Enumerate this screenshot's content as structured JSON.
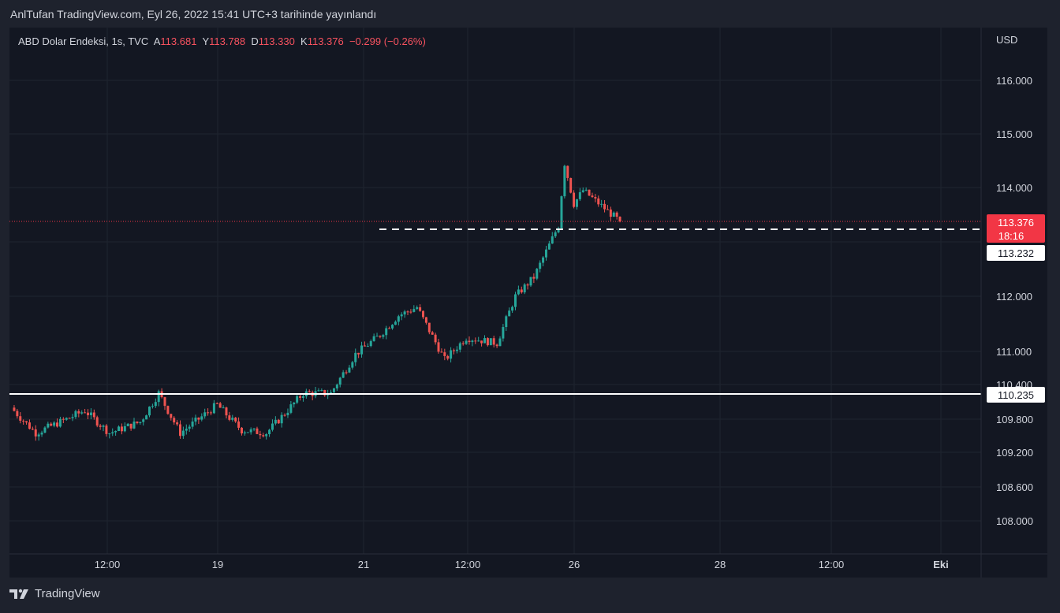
{
  "header": {
    "published": "AnlTufan TradingView.com, Eyl 26, 2022 15:41 UTC+3 tarihinde yayınlandı"
  },
  "legend": {
    "symbol": "ABD Dolar Endeksi, 1s, TVC",
    "open_label": "A",
    "open": "113.681",
    "high_label": "Y",
    "high": "113.788",
    "low_label": "D",
    "low": "113.330",
    "close_label": "K",
    "close": "113.376",
    "change": "−0.299 (−0.26%)"
  },
  "footer": {
    "brand": "TradingView"
  },
  "colors": {
    "up": "#26a69a",
    "down": "#ef5350",
    "background": "#131722",
    "grid": "#1f2430",
    "text": "#d1d4dc",
    "price_tag": "#f23645"
  },
  "chart_data": {
    "type": "candlestick",
    "currency_label": "USD",
    "y_ticks": [
      "116.000",
      "115.000",
      "114.000",
      "112.000",
      "111.000",
      "110.400",
      "109.800",
      "109.200",
      "108.600",
      "108.000"
    ],
    "x_ticks": [
      {
        "label": "12:00",
        "bold": false
      },
      {
        "label": "19",
        "bold": false
      },
      {
        "label": "21",
        "bold": false
      },
      {
        "label": "12:00",
        "bold": false
      },
      {
        "label": "26",
        "bold": false
      },
      {
        "label": "28",
        "bold": false
      },
      {
        "label": "12:00",
        "bold": false
      },
      {
        "label": "Eki",
        "bold": true
      }
    ],
    "last_price": {
      "value": "113.376",
      "countdown": "18:16"
    },
    "dashed_level": {
      "value": "113.232"
    },
    "support_level": {
      "value": "110.235"
    },
    "segments": [
      {
        "from": 110.0,
        "to": 109.55,
        "bars": 8
      },
      {
        "from": 109.55,
        "to": 109.75,
        "bars": 8
      },
      {
        "from": 109.75,
        "to": 109.95,
        "bars": 8
      },
      {
        "from": 109.95,
        "to": 109.55,
        "bars": 8
      },
      {
        "from": 109.55,
        "to": 109.75,
        "bars": 10
      },
      {
        "from": 109.75,
        "to": 110.25,
        "bars": 6
      },
      {
        "from": 110.25,
        "to": 109.55,
        "bars": 7
      },
      {
        "from": 109.55,
        "to": 110.05,
        "bars": 12
      },
      {
        "from": 110.05,
        "to": 109.6,
        "bars": 8
      },
      {
        "from": 109.6,
        "to": 109.55,
        "bars": 8
      },
      {
        "from": 109.55,
        "to": 110.25,
        "bars": 12
      },
      {
        "from": 110.25,
        "to": 110.25,
        "bars": 9
      },
      {
        "from": 110.25,
        "to": 110.95,
        "bars": 8
      },
      {
        "from": 110.95,
        "to": 111.3,
        "bars": 8
      },
      {
        "from": 111.3,
        "to": 111.65,
        "bars": 6
      },
      {
        "from": 111.65,
        "to": 111.8,
        "bars": 6
      },
      {
        "from": 111.8,
        "to": 110.85,
        "bars": 9
      },
      {
        "from": 110.85,
        "to": 111.25,
        "bars": 7
      },
      {
        "from": 111.25,
        "to": 111.15,
        "bars": 10
      },
      {
        "from": 111.15,
        "to": 112.0,
        "bars": 6
      },
      {
        "from": 112.0,
        "to": 112.35,
        "bars": 6
      },
      {
        "from": 112.35,
        "to": 113.3,
        "bars": 8
      },
      {
        "from": 113.3,
        "to": 114.45,
        "bars": 2
      },
      {
        "from": 114.45,
        "to": 113.7,
        "bars": 3
      },
      {
        "from": 113.7,
        "to": 113.95,
        "bars": 3
      },
      {
        "from": 113.95,
        "to": 113.376,
        "bars": 12
      }
    ]
  }
}
